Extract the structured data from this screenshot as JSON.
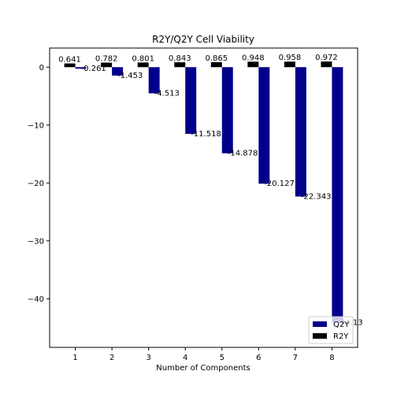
{
  "chart_data": {
    "type": "bar",
    "title": "R2Y/Q2Y Cell Viability",
    "xlabel": "Number of Components",
    "ylabel": "",
    "categories": [
      "1",
      "2",
      "3",
      "4",
      "5",
      "6",
      "7",
      "8"
    ],
    "series": [
      {
        "name": "Q2Y",
        "color": "#00008b",
        "values": [
          -0.261,
          -1.453,
          -4.513,
          -11.518,
          -14.878,
          -20.127,
          -22.343,
          -44.13
        ]
      },
      {
        "name": "R2Y",
        "color": "#000000",
        "values": [
          0.641,
          0.782,
          0.801,
          0.843,
          0.865,
          0.948,
          0.958,
          0.972
        ]
      }
    ],
    "ylim": [
      -48.4,
      3.3
    ],
    "yticks": [
      0,
      -10,
      -20,
      -30,
      -40
    ],
    "grid": false,
    "legend_position": "lower-right"
  }
}
